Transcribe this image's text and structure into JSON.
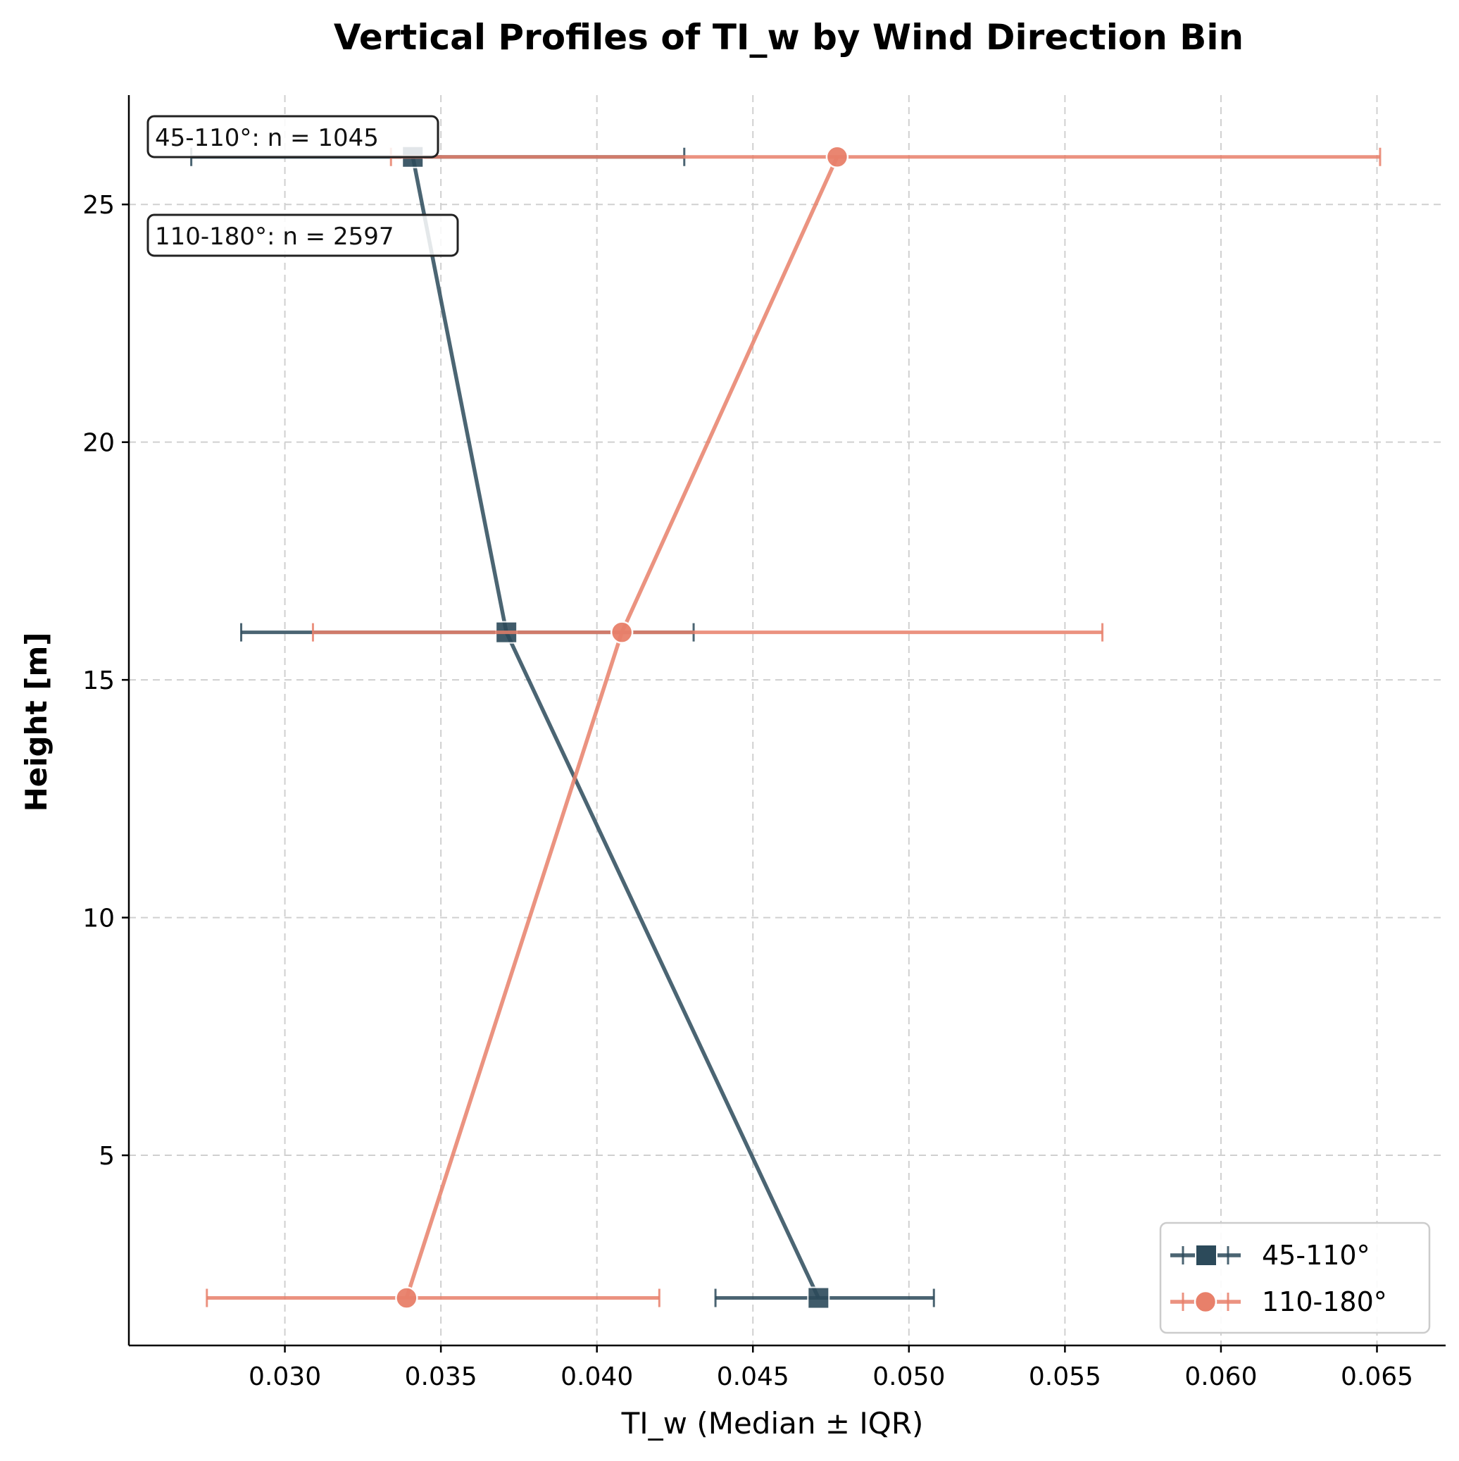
{
  "chart_data": {
    "type": "line",
    "title": "Vertical Profiles of TI_w by Wind Direction Bin",
    "xlabel": "TI_w (Median ± IQR)",
    "ylabel": "Height [m]",
    "xlim": [
      0.025,
      0.0672
    ],
    "ylim": [
      1.0,
      27.3
    ],
    "xticks": [
      0.03,
      0.035,
      0.04,
      0.045,
      0.05,
      0.055,
      0.06,
      0.065
    ],
    "xtick_labels": [
      "0.030",
      "0.035",
      "0.040",
      "0.045",
      "0.050",
      "0.055",
      "0.060",
      "0.065"
    ],
    "yticks": [
      5,
      10,
      15,
      20,
      25
    ],
    "ytick_labels": [
      "5",
      "10",
      "15",
      "20",
      "25"
    ],
    "grid": true,
    "legend_position": "bottom-right",
    "series": [
      {
        "name": "45-110°",
        "color": "#2c4a5a",
        "marker": "square",
        "heights": [
          2,
          16,
          26
        ],
        "median": [
          0.0471,
          0.0371,
          0.0341
        ],
        "iqr_low": [
          0.0438,
          0.0286,
          0.027
        ],
        "iqr_high": [
          0.0508,
          0.0431,
          0.0428
        ]
      },
      {
        "name": "110-180°",
        "color": "#e8806a",
        "marker": "circle",
        "heights": [
          2,
          16,
          26
        ],
        "median": [
          0.0339,
          0.0408,
          0.0477
        ],
        "iqr_low": [
          0.0275,
          0.0309,
          0.0334
        ],
        "iqr_high": [
          0.042,
          0.0562,
          0.0651
        ]
      }
    ],
    "annotations": [
      "45-110°: n = 1045",
      "110-180°: n = 2597"
    ]
  }
}
